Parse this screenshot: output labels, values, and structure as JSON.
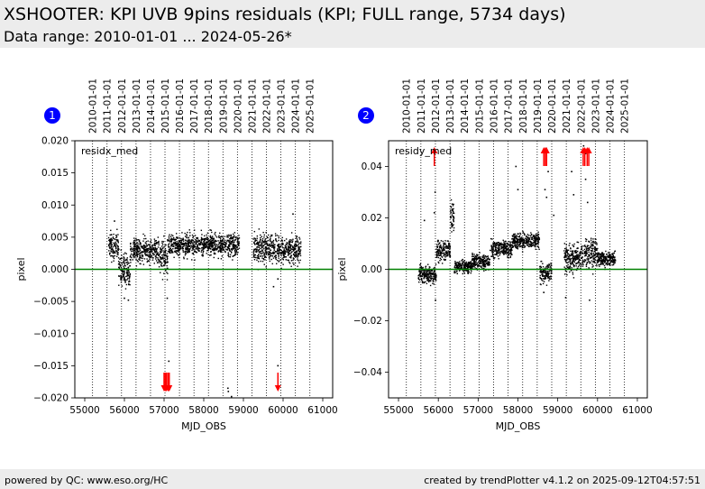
{
  "header": {
    "title": "XSHOOTER: KPI UVB 9pins residuals (KPI; FULL range, 5734 days)",
    "subtitle": "Data range: 2010-01-01 ... 2024-05-26*"
  },
  "footer": {
    "left": "powered by QC: www.eso.org/HC",
    "right": "created by trendPlotter v4.1.2 on 2025-09-12T04:57:51"
  },
  "colors": {
    "header_bg": "#ececec",
    "points": "#000000",
    "zero_line": "#008000",
    "outlier_arrows": "#ff0000",
    "badge": "#0000ff"
  },
  "chart_data": [
    {
      "type": "scatter",
      "badge": "1",
      "label": "residx_med",
      "xlabel": "MJD_OBS",
      "ylabel": "pixel",
      "xlim": [
        54750,
        61250
      ],
      "ylim": [
        -0.02,
        0.02
      ],
      "x_ticks": [
        55000,
        56000,
        57000,
        58000,
        59000,
        60000,
        61000
      ],
      "y_ticks": [
        -0.02,
        -0.015,
        -0.01,
        -0.005,
        0.0,
        0.005,
        0.01,
        0.015,
        0.02
      ],
      "y_tick_labels": [
        "−0.020",
        "−0.015",
        "−0.010",
        "−0.005",
        "0.000",
        "0.005",
        "0.010",
        "0.015",
        "0.020"
      ],
      "date_ticks": [
        "2010-01-01",
        "2011-01-01",
        "2012-01-01",
        "2013-01-01",
        "2014-01-01",
        "2015-01-01",
        "2016-01-01",
        "2017-01-01",
        "2018-01-01",
        "2019-01-01",
        "2020-01-01",
        "2021-01-01",
        "2022-01-01",
        "2023-01-01",
        "2024-01-01",
        "2025-01-01"
      ],
      "zero_line": 0,
      "segments": [
        {
          "x_start": 55600,
          "x_end": 55850,
          "mean": 0.0035,
          "spread": 0.0022
        },
        {
          "x_start": 55850,
          "x_end": 56150,
          "mean": 0.0,
          "spread": 0.0025
        },
        {
          "x_start": 56150,
          "x_end": 56850,
          "mean": 0.003,
          "spread": 0.0017
        },
        {
          "x_start": 56850,
          "x_end": 57100,
          "mean": 0.002,
          "spread": 0.0025
        },
        {
          "x_start": 57100,
          "x_end": 58900,
          "mean": 0.0038,
          "spread": 0.0015
        },
        {
          "x_start": 59250,
          "x_end": 59900,
          "mean": 0.0032,
          "spread": 0.002
        },
        {
          "x_start": 59900,
          "x_end": 60450,
          "mean": 0.003,
          "spread": 0.0018
        }
      ],
      "extra_points": [
        {
          "x": 55750,
          "y": 0.0075
        },
        {
          "x": 56100,
          "y": -0.0048
        },
        {
          "x": 56000,
          "y": -0.0045
        },
        {
          "x": 57080,
          "y": -0.0045
        },
        {
          "x": 57120,
          "y": -0.0143
        },
        {
          "x": 59760,
          "y": -0.0027
        },
        {
          "x": 59870,
          "y": -0.0015
        },
        {
          "x": 60250,
          "y": 0.0086
        },
        {
          "x": 58610,
          "y": -0.0185
        },
        {
          "x": 58620,
          "y": -0.019
        },
        {
          "x": 59870,
          "y": -0.015
        },
        {
          "x": 58700,
          "y": -0.0198
        }
      ],
      "outliers_below": [
        57000,
        57030,
        57060,
        57100,
        57130,
        59870
      ]
    },
    {
      "type": "scatter",
      "badge": "2",
      "label": "residy_med",
      "xlabel": "MJD_OBS",
      "ylabel": "pixel",
      "xlim": [
        54750,
        61250
      ],
      "ylim": [
        -0.05,
        0.05
      ],
      "x_ticks": [
        55000,
        56000,
        57000,
        58000,
        59000,
        60000,
        61000
      ],
      "y_ticks": [
        -0.04,
        -0.02,
        0.0,
        0.02,
        0.04
      ],
      "y_tick_labels": [
        "−0.04",
        "−0.02",
        "0.00",
        "0.02",
        "0.04"
      ],
      "date_ticks": [
        "2010-01-01",
        "2011-01-01",
        "2012-01-01",
        "2013-01-01",
        "2014-01-01",
        "2015-01-01",
        "2016-01-01",
        "2017-01-01",
        "2018-01-01",
        "2019-01-01",
        "2020-01-01",
        "2021-01-01",
        "2022-01-01",
        "2023-01-01",
        "2024-01-01",
        "2025-01-01"
      ],
      "zero_line": 0,
      "segments": [
        {
          "x_start": 55500,
          "x_end": 55950,
          "mean": -0.002,
          "spread": 0.003
        },
        {
          "x_start": 55950,
          "x_end": 56300,
          "mean": 0.007,
          "spread": 0.0035
        },
        {
          "x_start": 56300,
          "x_end": 56400,
          "mean": 0.02,
          "spread": 0.006
        },
        {
          "x_start": 56400,
          "x_end": 56850,
          "mean": 0.001,
          "spread": 0.002
        },
        {
          "x_start": 56850,
          "x_end": 57300,
          "mean": 0.003,
          "spread": 0.0025
        },
        {
          "x_start": 57300,
          "x_end": 57850,
          "mean": 0.008,
          "spread": 0.003
        },
        {
          "x_start": 57850,
          "x_end": 58550,
          "mean": 0.011,
          "spread": 0.0025
        },
        {
          "x_start": 58550,
          "x_end": 58850,
          "mean": -0.001,
          "spread": 0.0035
        },
        {
          "x_start": 59150,
          "x_end": 59600,
          "mean": 0.004,
          "spread": 0.005
        },
        {
          "x_start": 59600,
          "x_end": 60000,
          "mean": 0.006,
          "spread": 0.005
        },
        {
          "x_start": 60000,
          "x_end": 60450,
          "mean": 0.004,
          "spread": 0.0025
        }
      ],
      "extra_points": [
        {
          "x": 55920,
          "y": 0.03
        },
        {
          "x": 55900,
          "y": 0.022
        },
        {
          "x": 55930,
          "y": -0.012
        },
        {
          "x": 55650,
          "y": 0.019
        },
        {
          "x": 58680,
          "y": 0.031
        },
        {
          "x": 58720,
          "y": 0.028
        },
        {
          "x": 58760,
          "y": 0.038
        },
        {
          "x": 58900,
          "y": 0.021
        },
        {
          "x": 59350,
          "y": 0.038
        },
        {
          "x": 59400,
          "y": 0.029
        },
        {
          "x": 59700,
          "y": 0.035
        },
        {
          "x": 59750,
          "y": 0.026
        },
        {
          "x": 59800,
          "y": -0.012
        },
        {
          "x": 57950,
          "y": 0.04
        },
        {
          "x": 58000,
          "y": 0.031
        },
        {
          "x": 59200,
          "y": -0.011
        },
        {
          "x": 58650,
          "y": -0.009
        },
        {
          "x": 59700,
          "y": 0.045
        },
        {
          "x": 58700,
          "y": 0.047
        },
        {
          "x": 59650,
          "y": 0.048
        }
      ],
      "outliers_above": [
        55900,
        58650,
        58690,
        58720,
        59640,
        59680,
        59740,
        59780
      ]
    }
  ]
}
